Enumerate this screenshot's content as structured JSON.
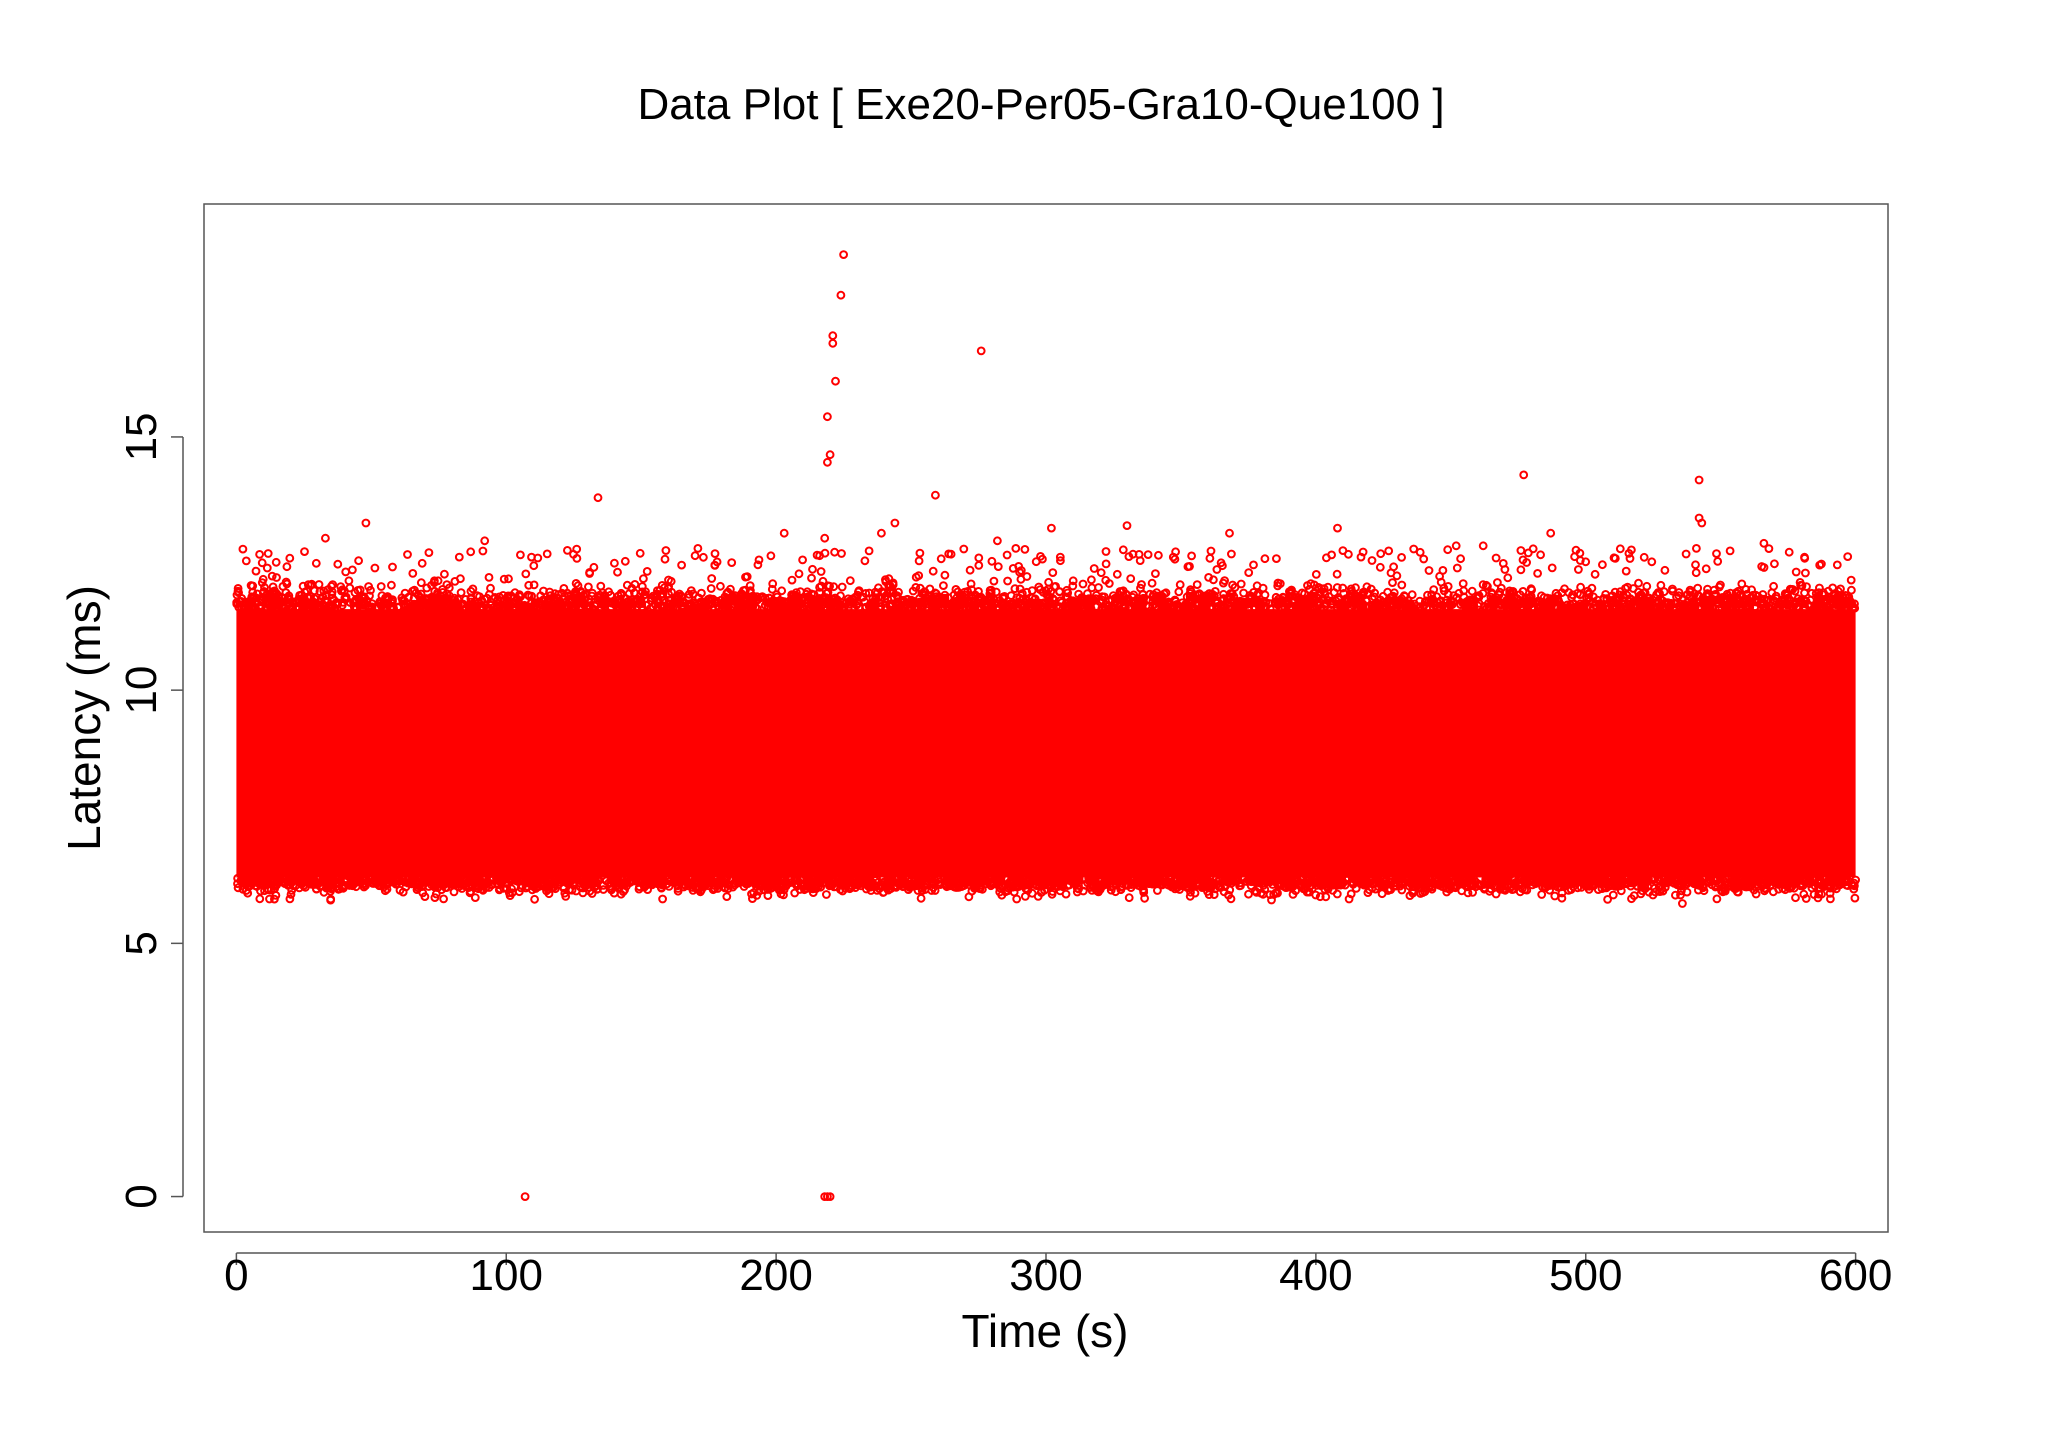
{
  "chart_data": {
    "type": "scatter",
    "title": "Data Plot [ Exe20-Per05-Gra10-Que100 ]",
    "xlabel": "Time (s)",
    "ylabel": "Latency (ms)",
    "xlim": [
      -12,
      612
    ],
    "ylim": [
      -0.7,
      19.6
    ],
    "xticks": [
      0,
      100,
      200,
      300,
      400,
      500,
      600
    ],
    "yticks": [
      0,
      5,
      10,
      15
    ],
    "grid": false,
    "legend": "none",
    "marker_color": "#ff0000",
    "marker": "open-circle",
    "series": [
      {
        "bulk": {
          "x_range": [
            0,
            600
          ],
          "y_range": [
            6.3,
            11.6
          ],
          "description": "dense band of points"
        },
        "outliers": [
          {
            "x": 225,
            "y": 18.6
          },
          {
            "x": 224,
            "y": 17.8
          },
          {
            "x": 221,
            "y": 17.0
          },
          {
            "x": 221,
            "y": 16.85
          },
          {
            "x": 222,
            "y": 16.1
          },
          {
            "x": 219,
            "y": 15.4
          },
          {
            "x": 220,
            "y": 14.65
          },
          {
            "x": 219,
            "y": 14.5
          },
          {
            "x": 276,
            "y": 16.7
          },
          {
            "x": 259,
            "y": 13.85
          },
          {
            "x": 134,
            "y": 13.8
          },
          {
            "x": 477,
            "y": 14.25
          },
          {
            "x": 542,
            "y": 14.15
          },
          {
            "x": 542,
            "y": 13.4
          },
          {
            "x": 543,
            "y": 13.3
          },
          {
            "x": 48,
            "y": 13.3
          },
          {
            "x": 244,
            "y": 13.3
          },
          {
            "x": 239,
            "y": 13.1
          },
          {
            "x": 203,
            "y": 13.1
          },
          {
            "x": 302,
            "y": 13.2
          },
          {
            "x": 330,
            "y": 13.25
          },
          {
            "x": 368,
            "y": 13.1
          },
          {
            "x": 408,
            "y": 13.2
          },
          {
            "x": 487,
            "y": 13.1
          },
          {
            "x": 566,
            "y": 12.9
          },
          {
            "x": 33,
            "y": 13.0
          },
          {
            "x": 92,
            "y": 12.95
          },
          {
            "x": 282,
            "y": 12.95
          },
          {
            "x": 218,
            "y": 13.0
          },
          {
            "x": 541,
            "y": 12.8
          },
          {
            "x": 452,
            "y": 12.85
          },
          {
            "x": 462,
            "y": 12.85
          },
          {
            "x": 171,
            "y": 12.8
          },
          {
            "x": 516,
            "y": 12.7
          },
          {
            "x": 427,
            "y": 12.75
          },
          {
            "x": 107,
            "y": 0
          },
          {
            "x": 218,
            "y": 0
          },
          {
            "x": 219,
            "y": 0
          },
          {
            "x": 220,
            "y": 0
          }
        ]
      }
    ]
  }
}
